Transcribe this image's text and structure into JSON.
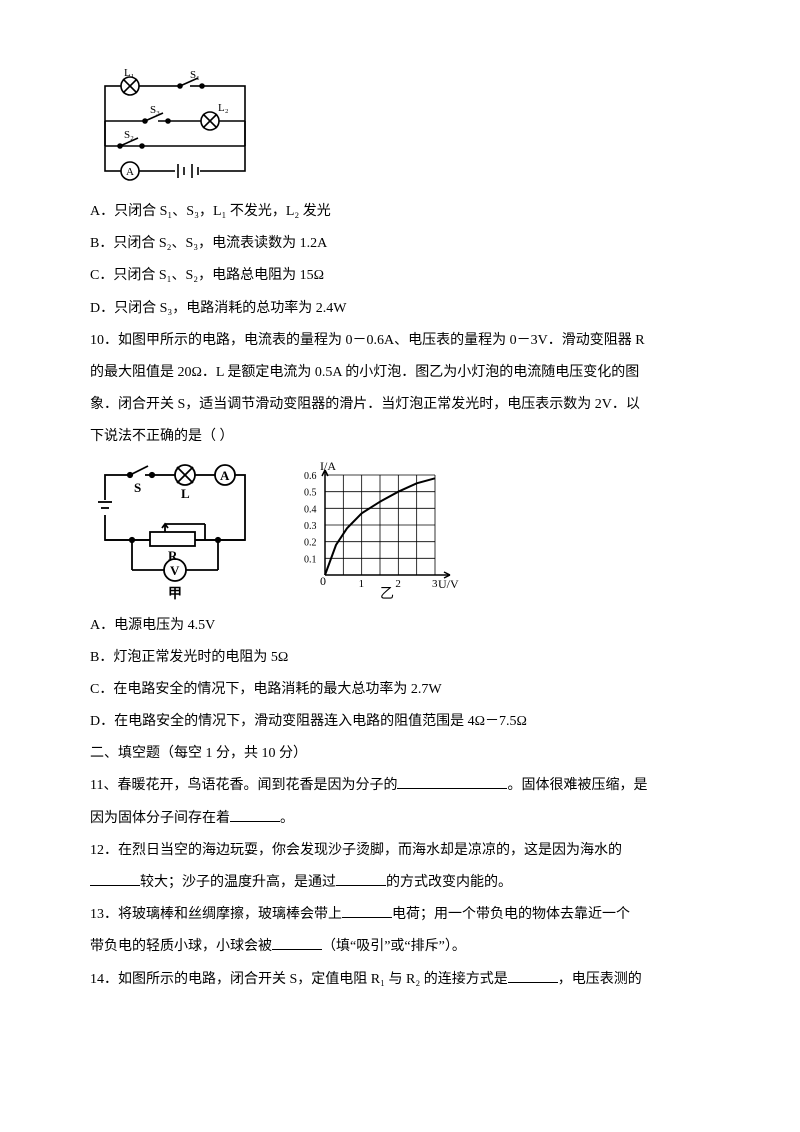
{
  "circuit1": {
    "labels": {
      "L1": "L₁",
      "L2": "L₂",
      "S1": "S₁",
      "S2": "S₂",
      "S3": "S₃",
      "A": "A"
    }
  },
  "optA": "A．只闭合 S₁、S₃，L₁ 不发光，L₂ 发光",
  "optB": "B．只闭合 S₂、S₃，电流表读数为 1.2A",
  "optC": "C．只闭合 S₁、S₂，电路总电阻为 15Ω",
  "optD": "D．只闭合 S₃，电路消耗的总功率为 2.4W",
  "q10": {
    "l1": "10．如图甲所示的电路，电流表的量程为 0－0.6A、电压表的量程为 0－3V．滑动变阻器 R",
    "l2": "的最大阻值是 20Ω．L 是额定电流为 0.5A 的小灯泡．图乙为小灯泡的电流随电压变化的图",
    "l3": "象．闭合开关 S，适当调节滑动变阻器的滑片．当灯泡正常发光时，电压表示数为 2V．以",
    "l4": "下说法不正确的是（  ）"
  },
  "circuit2": {
    "labels": {
      "S": "S",
      "L": "L",
      "A": "A",
      "R": "R",
      "V": "V",
      "cap": "甲"
    }
  },
  "graph": {
    "cap": "乙",
    "ylabel": "I/A",
    "xlabel": "U/V",
    "xlim": [
      0,
      3
    ],
    "ylim": [
      0,
      0.6
    ],
    "xticks": [
      1,
      2,
      3
    ],
    "yticks": [
      "0.1",
      "0.2",
      "0.3",
      "0.4",
      "0.5",
      "0.6"
    ],
    "bg": "#ffffff",
    "grid": "#000000",
    "curve": [
      [
        0,
        0
      ],
      [
        0.3,
        0.18
      ],
      [
        0.6,
        0.28
      ],
      [
        1,
        0.37
      ],
      [
        1.5,
        0.44
      ],
      [
        2,
        0.5
      ],
      [
        2.5,
        0.55
      ],
      [
        3,
        0.58
      ]
    ]
  },
  "q10A": "A．电源电压为 4.5V",
  "q10B": "B．灯泡正常发光时的电阻为 5Ω",
  "q10C": "C．在电路安全的情况下，电路消耗的最大总功率为 2.7W",
  "q10D": "D．在电路安全的情况下，滑动变阻器连入电路的阻值范围是 4Ω－7.5Ω",
  "sec2": "二、填空题（每空 1 分，共 10 分）",
  "q11a": "11、春暖花开，鸟语花香。闻到花香是因为分子的",
  "q11b": "。固体很难被压缩，是",
  "q11c": "因为固体分子间存在着",
  "q11d": "。",
  "q12a": "12．在烈日当空的海边玩耍，你会发现沙子烫脚，而海水却是凉凉的，这是因为海水的",
  "q12b": "较大；沙子的温度升高，是通过",
  "q12c": "的方式改变内能的。",
  "q13a": "13．将玻璃棒和丝绸摩擦，玻璃棒会带上",
  "q13b": "电荷；用一个带负电的物体去靠近一个",
  "q13c": "带负电的轻质小球，小球会被",
  "q13d": "（填“吸引”或“排斥”）。",
  "q14a": "14．如图所示的电路，闭合开关 S，定值电阻 R₁ 与 R₂ 的连接方式是",
  "q14b": "，电压表测的"
}
